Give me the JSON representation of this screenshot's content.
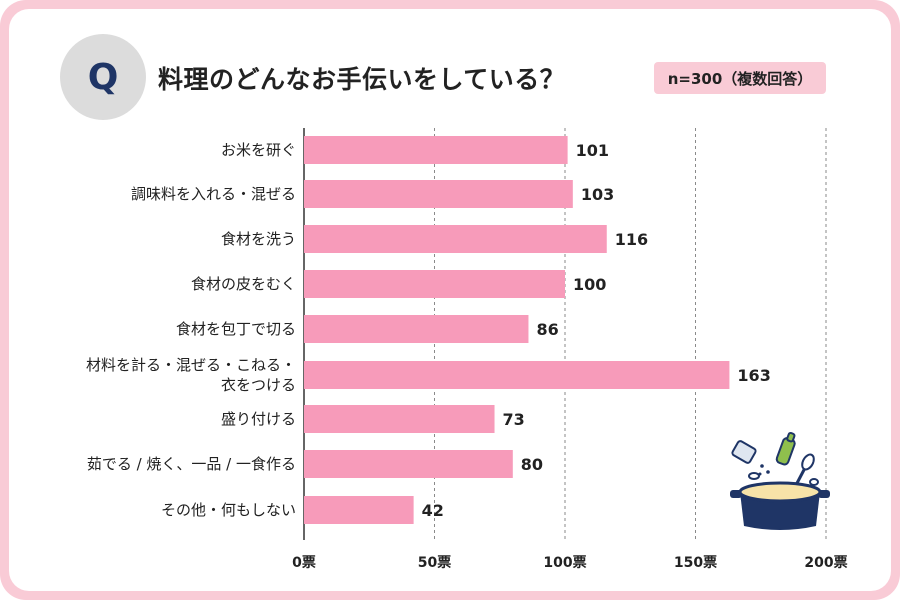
{
  "question_mark": "Q",
  "title": "料理のどんなお手伝いをしている？",
  "sample_note": "n=300（複数回答）",
  "colors": {
    "bar": "#f79bba",
    "frame": "#f9cbd6",
    "q_text": "#1f3566"
  },
  "illustration": "cooking-pot-icon",
  "chart_data": {
    "type": "bar",
    "orientation": "horizontal",
    "title": "料理のどんなお手伝いをしている？",
    "categories": [
      [
        "お米を研ぐ"
      ],
      [
        "調味料を入れる・混ぜる"
      ],
      [
        "食材を洗う"
      ],
      [
        "食材の皮をむく"
      ],
      [
        "食材を包丁で切る"
      ],
      [
        "材料を計る・混ぜる・こねる・",
        "衣をつける"
      ],
      [
        "盛り付ける"
      ],
      [
        "茹でる / 焼く、一品 / 一食作る"
      ],
      [
        "その他・何もしない"
      ]
    ],
    "values": [
      101,
      103,
      116,
      100,
      86,
      163,
      73,
      80,
      42
    ],
    "xlim": [
      0,
      200
    ],
    "ticks": [
      0,
      50,
      100,
      150,
      200
    ],
    "tick_labels": [
      "0票",
      "50票",
      "100票",
      "150票",
      "200票"
    ],
    "grid": true
  }
}
